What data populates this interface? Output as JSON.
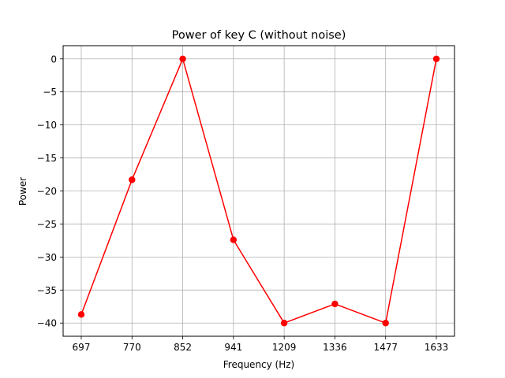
{
  "chart_data": {
    "type": "line",
    "title": "Power of key C (without noise)",
    "xlabel": "Frequency (Hz)",
    "ylabel": "Power",
    "categories": [
      "697",
      "770",
      "852",
      "941",
      "1209",
      "1336",
      "1477",
      "1633"
    ],
    "series": [
      {
        "values": [
          -38.7,
          -18.3,
          0,
          -27.4,
          -40.0,
          -37.1,
          -40.0,
          0
        ],
        "color": "#ff0000",
        "marker": "circle"
      }
    ],
    "ylim": [
      -42,
      2
    ],
    "yticks": [
      0,
      -5,
      -10,
      -15,
      -20,
      -25,
      -30,
      -35,
      -40
    ],
    "grid": true
  }
}
